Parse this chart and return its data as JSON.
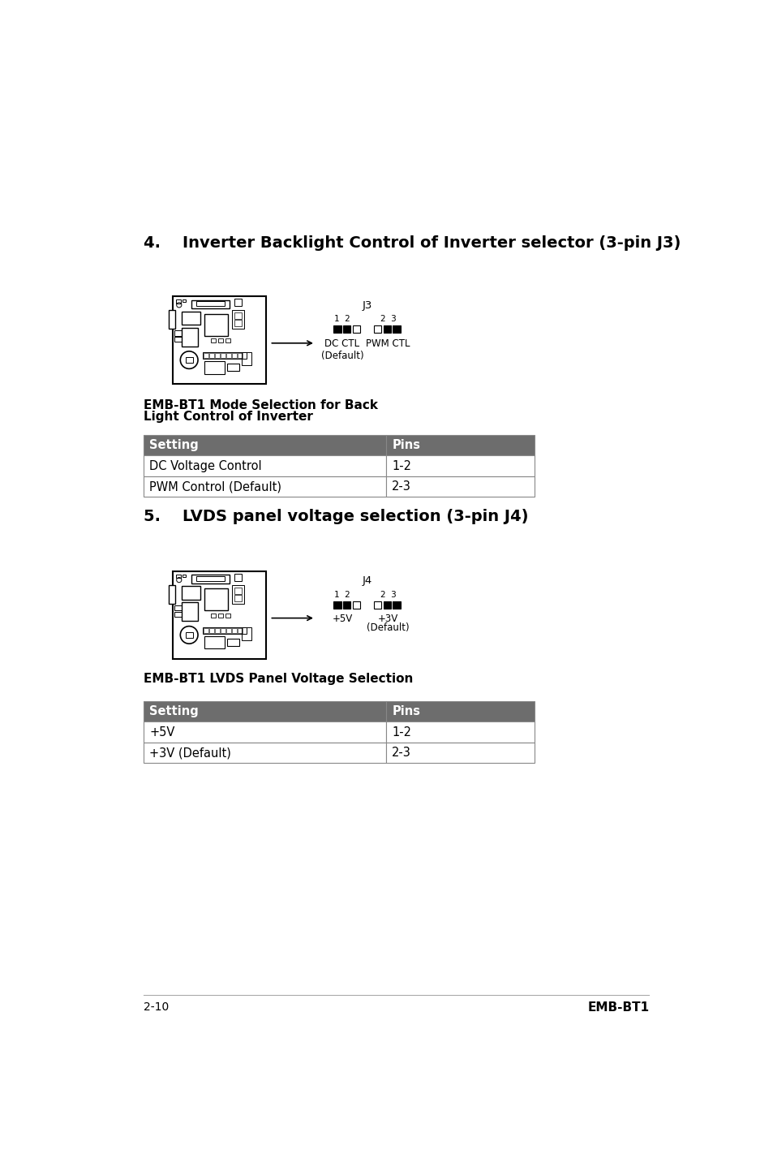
{
  "bg_color": "#ffffff",
  "section4_title": "4.    Inverter Backlight Control of Inverter selector (3-pin J3)",
  "section4_caption_line1": "EMB-BT1 Mode Selection for Back",
  "section4_caption_line2": "Light Control of Inverter",
  "section4_table_header": [
    "Setting",
    "Pins"
  ],
  "section4_table_rows": [
    [
      "DC Voltage Control",
      "1-2"
    ],
    [
      "PWM Control (Default)",
      "2-3"
    ]
  ],
  "section5_title": "5.    LVDS panel voltage selection (3-pin J4)",
  "section5_caption": "EMB-BT1 LVDS Panel Voltage Selection",
  "section5_table_header": [
    "Setting",
    "Pins"
  ],
  "section5_table_rows": [
    [
      "+5V",
      "1-2"
    ],
    [
      "+3V (Default)",
      "2-3"
    ]
  ],
  "footer_left": "2-10",
  "footer_right": "EMB-BT1",
  "table_header_bg": "#6d6d6d",
  "table_header_fg": "#ffffff",
  "table_border_color": "#888888",
  "title_fontsize": 14,
  "caption_fontsize": 11,
  "table_fontsize": 10.5,
  "footer_fontsize": 10
}
